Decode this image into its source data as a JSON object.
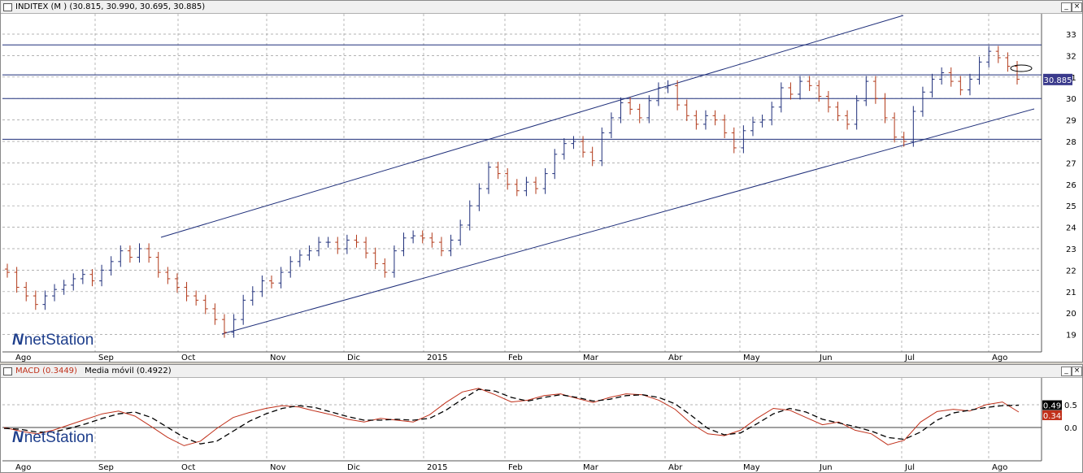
{
  "price_panel": {
    "title": "INDITEX (M ) (30.815, 30.990, 30.695, 30.885)",
    "last_price_label": "30.885",
    "logo": "netStation",
    "buttons": [
      "_",
      "×"
    ]
  },
  "macd_panel": {
    "title_macd": "MACD (0.3449)",
    "title_ma": "Media móvil (0.4922)",
    "value_label_ma": "0.49",
    "value_label_macd": "0.34",
    "logo": "netStation",
    "buttons": [
      "_",
      "×"
    ]
  },
  "colors": {
    "up": "#1f2f7a",
    "down": "#b23a1a",
    "macd_line": "#c0301a",
    "signal_line": "#000000",
    "grid": "#9a9a9a",
    "trendline": "#1f2f7a",
    "last_price_bg": "#3a3a8c"
  },
  "chart_data": [
    {
      "type": "ohlc",
      "title": "INDITEX (M ) (30.815, 30.990, 30.695, 30.885)",
      "ylim": [
        18,
        33.5
      ],
      "y_ticks": [
        19,
        20,
        21,
        22,
        23,
        24,
        25,
        26,
        27,
        28,
        29,
        30,
        31,
        32,
        33
      ],
      "x_tick_labels": [
        "Ago",
        "Sep",
        "Oct",
        "Nov",
        "Dic",
        "2015",
        "Feb",
        "Mar",
        "Abr",
        "May",
        "Jun",
        "Jul",
        "Ago"
      ],
      "grid": true,
      "horizontal_lines": [
        32.5,
        31.1,
        30.0,
        28.1
      ],
      "last_price": 30.885,
      "close_series": [
        21.9,
        21.2,
        20.8,
        20.4,
        20.8,
        21.1,
        21.3,
        21.6,
        21.8,
        21.5,
        22.0,
        22.4,
        22.9,
        22.6,
        23.0,
        22.6,
        21.9,
        21.6,
        21.2,
        20.8,
        20.6,
        20.2,
        19.7,
        19.1,
        19.7,
        20.6,
        21.0,
        21.5,
        21.4,
        21.9,
        22.4,
        22.7,
        22.9,
        23.3,
        23.3,
        23.0,
        23.4,
        23.3,
        22.8,
        22.3,
        21.9,
        22.9,
        23.5,
        23.6,
        23.5,
        23.3,
        22.9,
        23.4,
        24.1,
        25.0,
        25.8,
        26.8,
        26.5,
        26.0,
        25.7,
        26.1,
        25.8,
        26.5,
        27.4,
        27.9,
        28.0,
        27.5,
        27.1,
        28.4,
        29.1,
        29.8,
        29.5,
        29.1,
        29.9,
        30.5,
        30.6,
        29.7,
        29.2,
        28.8,
        29.2,
        29.0,
        28.4,
        27.7,
        28.5,
        28.9,
        29.0,
        29.6,
        30.5,
        30.2,
        30.8,
        30.6,
        30.1,
        29.6,
        29.2,
        28.8,
        29.9,
        30.8,
        30.0,
        29.1,
        28.2,
        28.0,
        29.4,
        30.3,
        30.9,
        31.2,
        30.8,
        30.4,
        30.9,
        31.7,
        32.2,
        31.9,
        31.5,
        30.9
      ],
      "annotation": "ellipse near last price",
      "watermark": "netStation"
    },
    {
      "type": "line",
      "title": "MACD (0.3449)  Media móvil (0.4922)",
      "ylim": [
        -0.55,
        0.95
      ],
      "y_ticks": [
        0.0,
        0.5
      ],
      "x_tick_labels": [
        "Ago",
        "Sep",
        "Oct",
        "Nov",
        "Dic",
        "2015",
        "Feb",
        "Mar",
        "Abr",
        "May",
        "Jun",
        "Jul",
        "Ago"
      ],
      "grid": true,
      "series": [
        {
          "name": "MACD (0.3449)",
          "color": "#c0301a",
          "style": "solid",
          "values": [
            0.0,
            -0.08,
            -0.14,
            -0.06,
            0.06,
            0.18,
            0.3,
            0.36,
            0.25,
            0.02,
            -0.22,
            -0.4,
            -0.3,
            -0.02,
            0.22,
            0.33,
            0.42,
            0.48,
            0.45,
            0.36,
            0.28,
            0.18,
            0.12,
            0.2,
            0.16,
            0.12,
            0.28,
            0.55,
            0.78,
            0.86,
            0.72,
            0.56,
            0.6,
            0.7,
            0.74,
            0.64,
            0.55,
            0.66,
            0.74,
            0.72,
            0.6,
            0.4,
            0.08,
            -0.14,
            -0.18,
            -0.06,
            0.2,
            0.42,
            0.38,
            0.22,
            0.06,
            0.12,
            -0.06,
            -0.14,
            -0.38,
            -0.28,
            0.12,
            0.35,
            0.4,
            0.36,
            0.5,
            0.56,
            0.34
          ]
        },
        {
          "name": "Media móvil (0.4922)",
          "color": "#000000",
          "style": "dashed",
          "values": [
            -0.02,
            -0.04,
            -0.1,
            -0.1,
            -0.02,
            0.08,
            0.2,
            0.3,
            0.34,
            0.22,
            0.0,
            -0.22,
            -0.36,
            -0.3,
            -0.08,
            0.14,
            0.3,
            0.42,
            0.48,
            0.44,
            0.34,
            0.24,
            0.16,
            0.16,
            0.18,
            0.16,
            0.2,
            0.38,
            0.62,
            0.84,
            0.8,
            0.66,
            0.58,
            0.66,
            0.72,
            0.66,
            0.58,
            0.62,
            0.7,
            0.72,
            0.66,
            0.52,
            0.26,
            -0.02,
            -0.16,
            -0.12,
            0.08,
            0.3,
            0.42,
            0.34,
            0.18,
            0.1,
            0.02,
            -0.08,
            -0.22,
            -0.26,
            -0.1,
            0.16,
            0.32,
            0.38,
            0.44,
            0.48,
            0.49
          ]
        }
      ],
      "value_labels": [
        "0.49",
        "0.34"
      ],
      "watermark": "netStation"
    }
  ]
}
